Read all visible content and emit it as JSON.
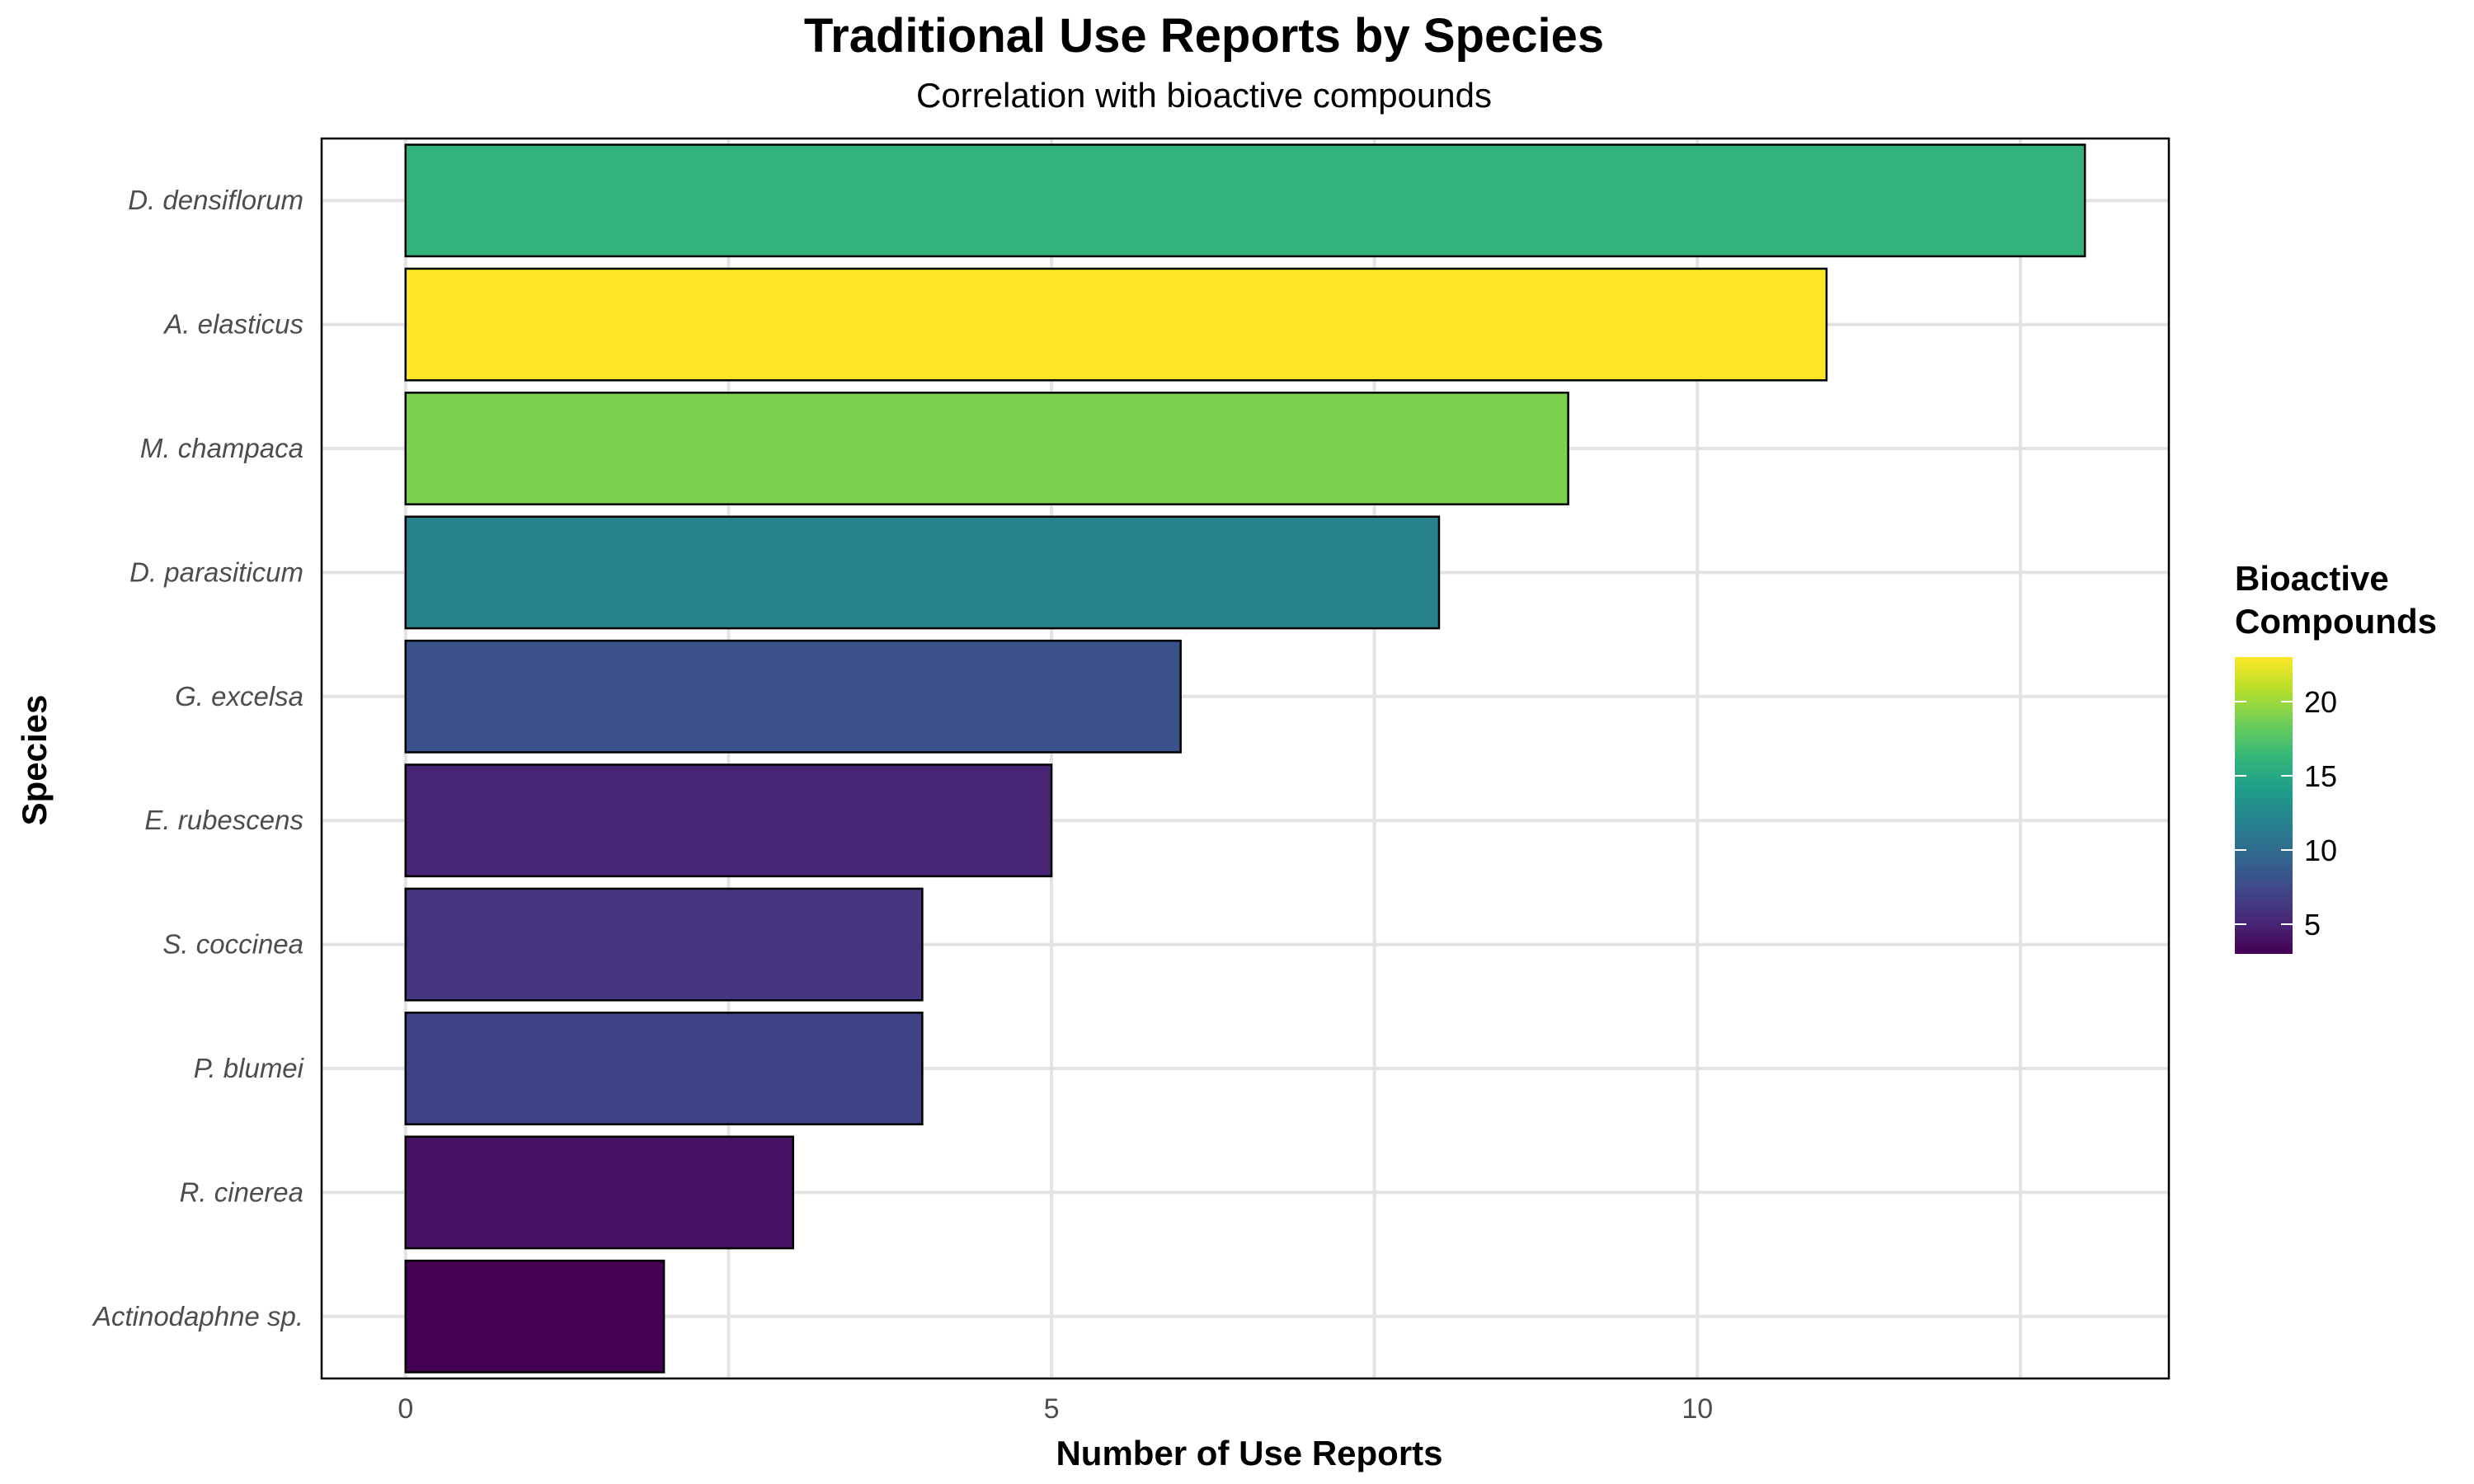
{
  "chart_data": {
    "type": "bar",
    "orientation": "horizontal",
    "title": "Traditional Use Reports by Species",
    "subtitle": "Correlation with bioactive compounds",
    "xlabel": "Number of Use Reports",
    "ylabel": "Species",
    "xlim": [
      -0.65,
      13.65
    ],
    "xticks": [
      0,
      5,
      10
    ],
    "grid": true,
    "categories": [
      "D. densiflorum",
      "A. elasticus",
      "M. champaca",
      "D. parasiticum",
      "G. excelsa",
      "E. rubescens",
      "S. coccinea",
      "P. blumei",
      "R. cinerea",
      "Actinodaphne sp."
    ],
    "values": [
      13,
      11,
      9,
      8,
      6,
      5,
      4,
      4,
      3,
      2
    ],
    "color_values": [
      16,
      23,
      19,
      12,
      8,
      5,
      6,
      7,
      4,
      3
    ],
    "legend": {
      "title_lines": [
        "Bioactive",
        "Compounds"
      ],
      "position": "right",
      "range": [
        3,
        23
      ],
      "ticks": [
        5,
        10,
        15,
        20
      ],
      "colormap": "viridis"
    }
  }
}
